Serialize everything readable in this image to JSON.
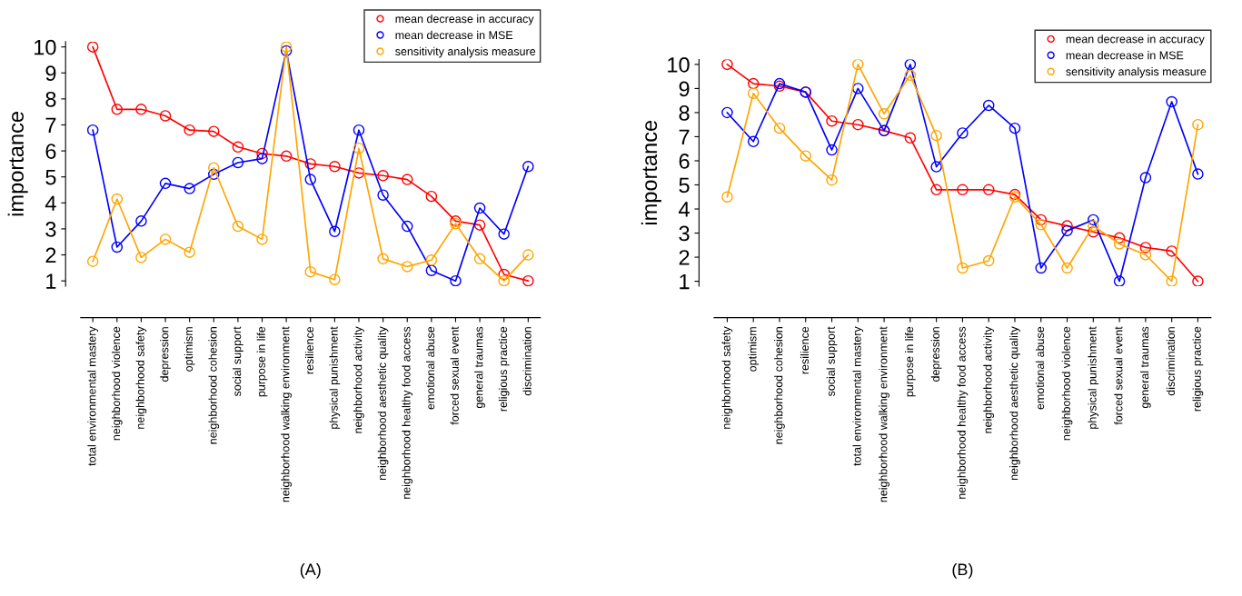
{
  "chart_data": [
    {
      "type": "line",
      "ylabel": "importance",
      "annotations": [
        "(A)"
      ],
      "legend": "top right",
      "grid": false,
      "marker": "circle",
      "line_style": "solid",
      "ylim": [
        0.8,
        10.2
      ],
      "yticks": [
        1,
        2,
        3,
        4,
        5,
        6,
        7,
        8,
        9,
        10
      ],
      "categories": [
        "total environmental mastery",
        "neighborhood violence",
        "neighborhood safety",
        "depression",
        "optimism",
        "neighborhood cohesion",
        "social support",
        "purpose in life",
        "neighborhood walking environment",
        "resilience",
        "physical punishment",
        "neighborhood activity",
        "neighborhood aesthetic quality",
        "neighborhood healthy food access",
        "emotional abuse",
        "forced sexual event",
        "general traumas",
        "religious practice",
        "discrimination"
      ],
      "series": [
        {
          "name": "mean decrease in accuracy",
          "color": "#ff0000",
          "values": [
            10,
            7.6,
            7.6,
            7.35,
            6.8,
            6.75,
            6.15,
            5.9,
            5.8,
            5.5,
            5.4,
            5.15,
            5.05,
            4.9,
            4.25,
            3.3,
            3.15,
            1.25,
            1.0
          ]
        },
        {
          "name": "mean decrease in MSE",
          "color": "#0000ff",
          "values": [
            6.8,
            2.3,
            3.3,
            4.75,
            4.55,
            5.1,
            5.55,
            5.7,
            9.85,
            4.9,
            2.9,
            6.8,
            4.3,
            3.1,
            1.4,
            1.0,
            3.8,
            2.8,
            5.4
          ]
        },
        {
          "name": "sensitivity analysis measure",
          "color": "#ffa500",
          "values": [
            1.75,
            4.15,
            1.9,
            2.6,
            2.1,
            5.35,
            3.1,
            2.6,
            10,
            1.35,
            1.05,
            6.1,
            1.85,
            1.55,
            1.8,
            3.2,
            1.85,
            1.0,
            2.0
          ]
        }
      ]
    },
    {
      "type": "line",
      "ylabel": "importance",
      "annotations": [
        "(B)"
      ],
      "legend": "top right",
      "grid": false,
      "marker": "circle",
      "line_style": "solid",
      "ylim": [
        0.8,
        10.2
      ],
      "yticks": [
        1,
        2,
        3,
        4,
        5,
        6,
        7,
        8,
        9,
        10
      ],
      "categories": [
        "neighborhood safety",
        "optimism",
        "neighborhood cohesion",
        "resilience",
        "social support",
        "total environmental mastery",
        "neighborhood walking environment",
        "purpose in life",
        "depression",
        "neighborhood healthy food access",
        "neighborhood activity",
        "neighborhood aesthetic quality",
        "emotional abuse",
        "neighborhood violence",
        "physical punishment",
        "forced sexual event",
        "general traumas",
        "discrimination",
        "religious practice"
      ],
      "series": [
        {
          "name": "mean decrease in accuracy",
          "color": "#ff0000",
          "values": [
            10,
            9.2,
            9.1,
            8.85,
            7.65,
            7.5,
            7.25,
            6.95,
            4.8,
            4.8,
            4.8,
            4.6,
            3.55,
            3.3,
            3.05,
            2.8,
            2.4,
            2.25,
            1.0
          ]
        },
        {
          "name": "mean decrease in MSE",
          "color": "#0000ff",
          "values": [
            8.0,
            6.8,
            9.2,
            8.85,
            6.45,
            9.0,
            7.25,
            10.0,
            5.75,
            7.15,
            8.3,
            7.35,
            1.55,
            3.1,
            3.55,
            1.0,
            5.3,
            8.45,
            5.45
          ]
        },
        {
          "name": "sensitivity analysis measure",
          "color": "#ffa500",
          "values": [
            4.5,
            8.8,
            7.35,
            6.2,
            5.2,
            10,
            7.95,
            9.55,
            7.05,
            1.55,
            1.85,
            4.5,
            3.35,
            1.55,
            3.3,
            2.55,
            2.1,
            1.0,
            7.5
          ]
        }
      ]
    }
  ]
}
